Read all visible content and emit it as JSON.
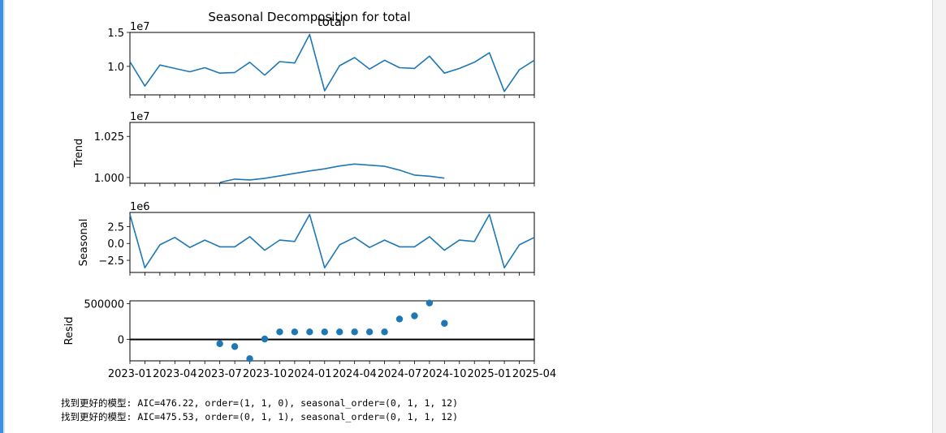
{
  "chart_data": {
    "type": "line",
    "title": "Seasonal Decomposition for total",
    "x": [
      "2023-01",
      "2023-02",
      "2023-03",
      "2023-04",
      "2023-05",
      "2023-06",
      "2023-07",
      "2023-08",
      "2023-09",
      "2023-10",
      "2023-11",
      "2023-12",
      "2024-01",
      "2024-02",
      "2024-03",
      "2024-04",
      "2024-05",
      "2024-06",
      "2024-07",
      "2024-08",
      "2024-09",
      "2024-10",
      "2024-11",
      "2024-12",
      "2025-01",
      "2025-02",
      "2025-03",
      "2025-04"
    ],
    "xticks": [
      "2023-01",
      "2023-04",
      "2023-07",
      "2023-10",
      "2024-01",
      "2024-04",
      "2024-07",
      "2024-10",
      "2025-01",
      "2025-04"
    ],
    "panels": [
      {
        "key": "observed",
        "title": "total",
        "ylabel": "",
        "offset": "1e7",
        "ylim": [
          0.58,
          1.5
        ],
        "yticks": [
          1.0,
          1.5
        ],
        "yticklabels": [
          "1.0",
          "1.5"
        ],
        "style": "line",
        "values": [
          1.07,
          0.71,
          1.02,
          0.97,
          0.92,
          0.98,
          0.9,
          0.91,
          1.06,
          0.87,
          1.07,
          1.05,
          1.47,
          0.64,
          1.01,
          1.13,
          0.96,
          1.09,
          0.98,
          0.97,
          1.15,
          0.9,
          0.97,
          1.06,
          1.2,
          0.63,
          0.95,
          1.09
        ]
      },
      {
        "key": "trend",
        "title": "",
        "ylabel": "Trend",
        "offset": "1e7",
        "ylim": [
          0.9965,
          1.0335
        ],
        "yticks": [
          1.0,
          1.025
        ],
        "yticklabels": [
          "1.000",
          "1.025"
        ],
        "style": "line",
        "values": [
          null,
          null,
          null,
          null,
          null,
          null,
          0.997,
          0.999,
          0.9985,
          0.9995,
          1.001,
          1.0025,
          1.004,
          1.0053,
          1.007,
          1.0082,
          1.0075,
          1.0068,
          1.0045,
          1.0015,
          1.0008,
          0.9996,
          null,
          null,
          null,
          null,
          null,
          null
        ]
      },
      {
        "key": "seasonal",
        "title": "",
        "ylabel": "Seasonal",
        "offset": "1e6",
        "ylim": [
          -4.3,
          4.6
        ],
        "yticks": [
          2.5,
          0.0,
          -2.5
        ],
        "yticklabels": [
          "2.5",
          "0.0",
          "−2.5"
        ],
        "style": "line",
        "values": [
          4.3,
          -3.6,
          -0.2,
          0.9,
          -0.6,
          0.5,
          -0.5,
          -0.5,
          1.0,
          -1.0,
          0.5,
          0.3,
          4.3,
          -3.6,
          -0.2,
          0.9,
          -0.6,
          0.5,
          -0.5,
          -0.5,
          1.0,
          -1.0,
          0.5,
          0.3,
          4.3,
          -3.6,
          -0.2,
          0.9
        ]
      },
      {
        "key": "resid",
        "title": "",
        "ylabel": "Resid",
        "offset": "",
        "ylim": [
          -300000,
          540000
        ],
        "yticks": [
          500000,
          0
        ],
        "yticklabels": [
          "500000",
          "0"
        ],
        "style": "scatter",
        "zero_line": true,
        "values": [
          null,
          null,
          null,
          null,
          null,
          null,
          -60000,
          -100000,
          -270000,
          5000,
          105000,
          105000,
          105000,
          105000,
          105000,
          105000,
          105000,
          105000,
          285000,
          330000,
          510000,
          225000,
          null,
          null,
          null,
          null,
          null,
          null
        ]
      }
    ],
    "colors": {
      "line": "#1f77b4",
      "zero_line": "#000000"
    }
  },
  "log_lines": [
    "找到更好的模型: AIC=476.22, order=(1, 1, 0), seasonal_order=(0, 1, 1, 12)",
    "找到更好的模型: AIC=475.53, order=(0, 1, 1), seasonal_order=(0, 1, 1, 12)"
  ]
}
